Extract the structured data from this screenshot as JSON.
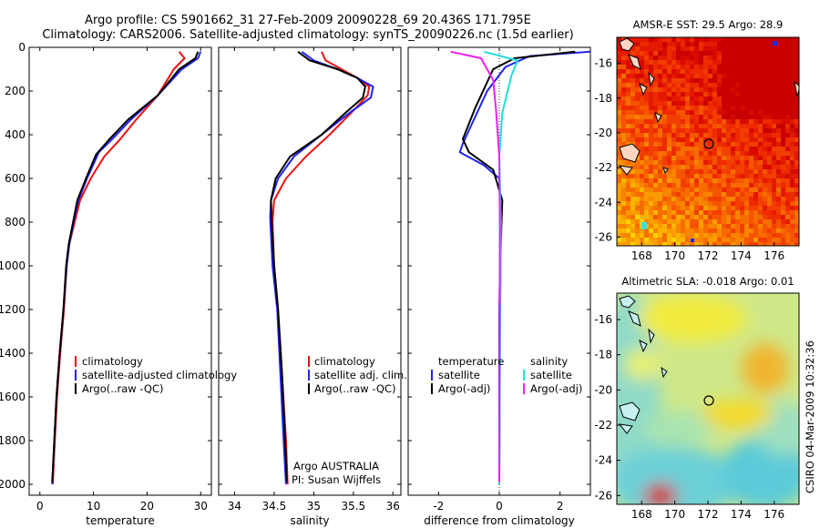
{
  "title": {
    "line1": "Argo profile: CS 5901662_31 27-Feb-2009 20090228_69 20.436S 171.795E",
    "line2": "Climatology: CARS2006. Satellite-adjusted climatology: synTS_20090226.nc (1.5d earlier)"
  },
  "credit": {
    "org": "Argo AUSTRALIA",
    "pi": "PI: Susan Wijffels",
    "stamp": "CSIRO 04-Mar-2009 10:32:36"
  },
  "colors": {
    "climatology": "#ee1111",
    "satellite": "#2222ee",
    "argo": "#000000",
    "sal_satellite": "#22dddd",
    "sal_argo": "#ee22ee"
  },
  "chart_data": [
    {
      "type": "line",
      "title": "",
      "xlabel": "temperature",
      "ylabel": "",
      "xlim": [
        -2,
        32
      ],
      "ylim": [
        2050,
        0
      ],
      "xticks": [
        0,
        10,
        20,
        30
      ],
      "yticks": [
        0,
        200,
        400,
        600,
        800,
        1000,
        1200,
        1400,
        1600,
        1800,
        2000
      ],
      "legend": [
        "climatology",
        "satellite-adjusted climatology",
        "Argo(..raw -QC)"
      ],
      "series": [
        {
          "name": "climatology",
          "color": "#ee1111",
          "points": [
            [
              26,
              20
            ],
            [
              27,
              50
            ],
            [
              25,
              100
            ],
            [
              22,
              220
            ],
            [
              18,
              330
            ],
            [
              15,
              420
            ],
            [
              12,
              500
            ],
            [
              9.5,
              600
            ],
            [
              7.5,
              700
            ],
            [
              6.5,
              800
            ],
            [
              5.5,
              900
            ],
            [
              5,
              1000
            ],
            [
              4.5,
              1200
            ],
            [
              3.8,
              1400
            ],
            [
              3.2,
              1600
            ],
            [
              2.8,
              1800
            ],
            [
              2.4,
              2000
            ]
          ]
        },
        {
          "name": "satellite",
          "color": "#2222ee",
          "points": [
            [
              30,
              20
            ],
            [
              29.5,
              50
            ],
            [
              26.5,
              100
            ],
            [
              22,
              220
            ],
            [
              17,
              330
            ],
            [
              13.5,
              420
            ],
            [
              11,
              480
            ],
            [
              8.8,
              600
            ],
            [
              7.2,
              700
            ],
            [
              6.3,
              800
            ],
            [
              5.5,
              900
            ],
            [
              5,
              1000
            ],
            [
              4.4,
              1200
            ],
            [
              3.7,
              1400
            ],
            [
              3.1,
              1600
            ],
            [
              2.7,
              1800
            ],
            [
              2.3,
              2000
            ]
          ]
        },
        {
          "name": "Argo",
          "color": "#000000",
          "points": [
            [
              29.5,
              20
            ],
            [
              29,
              50
            ],
            [
              26,
              100
            ],
            [
              22,
              220
            ],
            [
              16.5,
              330
            ],
            [
              13,
              420
            ],
            [
              10.5,
              490
            ],
            [
              8.6,
              600
            ],
            [
              7,
              700
            ],
            [
              6.2,
              800
            ],
            [
              5.4,
              900
            ],
            [
              4.9,
              1000
            ],
            [
              4.4,
              1200
            ],
            [
              3.7,
              1400
            ],
            [
              3.1,
              1600
            ],
            [
              2.7,
              1800
            ],
            [
              2.3,
              1990
            ]
          ]
        }
      ]
    },
    {
      "type": "line",
      "title": "",
      "xlabel": "salinity",
      "ylabel": "",
      "xlim": [
        33.8,
        36.1
      ],
      "ylim": [
        2050,
        0
      ],
      "xticks": [
        34,
        34.5,
        35,
        35.5,
        36
      ],
      "legend": [
        "climatology",
        "satellite adj. clim.",
        "Argo(..raw -QC)"
      ],
      "series": [
        {
          "name": "climatology",
          "color": "#ee1111",
          "points": [
            [
              35.1,
              20
            ],
            [
              35.15,
              60
            ],
            [
              35.35,
              100
            ],
            [
              35.55,
              140
            ],
            [
              35.7,
              180
            ],
            [
              35.68,
              220
            ],
            [
              35.5,
              290
            ],
            [
              35.2,
              400
            ],
            [
              34.9,
              500
            ],
            [
              34.65,
              600
            ],
            [
              34.5,
              700
            ],
            [
              34.48,
              800
            ],
            [
              34.5,
              1000
            ],
            [
              34.55,
              1200
            ],
            [
              34.6,
              1500
            ],
            [
              34.65,
              1800
            ],
            [
              34.67,
              2000
            ]
          ]
        },
        {
          "name": "satellite",
          "color": "#2222ee",
          "points": [
            [
              34.85,
              20
            ],
            [
              35.0,
              60
            ],
            [
              35.3,
              100
            ],
            [
              35.55,
              140
            ],
            [
              35.75,
              180
            ],
            [
              35.72,
              230
            ],
            [
              35.45,
              300
            ],
            [
              35.1,
              400
            ],
            [
              34.75,
              500
            ],
            [
              34.55,
              600
            ],
            [
              34.46,
              700
            ],
            [
              34.45,
              780
            ],
            [
              34.48,
              1000
            ],
            [
              34.54,
              1200
            ],
            [
              34.58,
              1500
            ],
            [
              34.62,
              1800
            ],
            [
              34.65,
              2000
            ]
          ]
        },
        {
          "name": "Argo",
          "color": "#000000",
          "points": [
            [
              34.8,
              20
            ],
            [
              34.95,
              60
            ],
            [
              35.3,
              100
            ],
            [
              35.55,
              140
            ],
            [
              35.65,
              180
            ],
            [
              35.62,
              230
            ],
            [
              35.4,
              300
            ],
            [
              35.1,
              400
            ],
            [
              34.7,
              500
            ],
            [
              34.52,
              600
            ],
            [
              34.46,
              700
            ],
            [
              34.47,
              800
            ],
            [
              34.5,
              1000
            ],
            [
              34.55,
              1200
            ],
            [
              34.6,
              1500
            ],
            [
              34.64,
              1800
            ],
            [
              34.66,
              1990
            ]
          ]
        }
      ]
    },
    {
      "type": "line",
      "title": "",
      "xlabel": "difference from climatology",
      "ylabel": "",
      "xlim": [
        -3,
        3
      ],
      "ylim": [
        2050,
        0
      ],
      "xticks": [
        -2,
        0,
        2
      ],
      "legend": [
        "temperature",
        "satellite",
        "Argo(-adj)",
        "salinity",
        "satellite",
        "Argo(-adj)"
      ],
      "series": [
        {
          "name": "temperature satellite",
          "color": "#2222ee",
          "points": [
            [
              3,
              20
            ],
            [
              1,
              40
            ],
            [
              0.2,
              90
            ],
            [
              -0.4,
              200
            ],
            [
              -0.9,
              350
            ],
            [
              -1.2,
              440
            ],
            [
              -1.3,
              480
            ],
            [
              -0.5,
              540
            ],
            [
              0,
              600
            ],
            [
              0.05,
              800
            ],
            [
              0,
              1200
            ],
            [
              0,
              2000
            ]
          ]
        },
        {
          "name": "temperature Argo(-adj)",
          "color": "#000000",
          "points": [
            [
              2.5,
              20
            ],
            [
              0.5,
              50
            ],
            [
              -0.2,
              100
            ],
            [
              -0.8,
              280
            ],
            [
              -1.2,
              420
            ],
            [
              -1,
              480
            ],
            [
              -0.2,
              560
            ],
            [
              0.1,
              700
            ],
            [
              0.05,
              900
            ],
            [
              0.02,
              1200
            ],
            [
              0,
              1990
            ]
          ]
        },
        {
          "name": "salinity satellite",
          "color": "#22dddd",
          "points": [
            [
              -0.5,
              20
            ],
            [
              0.6,
              60
            ],
            [
              0.4,
              130
            ],
            [
              0.1,
              300
            ],
            [
              0,
              500
            ],
            [
              0.05,
              800
            ],
            [
              0,
              2000
            ]
          ]
        },
        {
          "name": "salinity Argo(-adj)",
          "color": "#ee22ee",
          "points": [
            [
              -1.6,
              20
            ],
            [
              -0.6,
              50
            ],
            [
              -0.2,
              150
            ],
            [
              -0.1,
              300
            ],
            [
              0,
              500
            ],
            [
              0.02,
              800
            ],
            [
              0,
              1990
            ]
          ]
        }
      ]
    },
    {
      "type": "heatmap",
      "title": "AMSR-E SST: 29.5 Argo: 28.9",
      "xlim": [
        166.5,
        177.5
      ],
      "ylim": [
        -26.5,
        -14.5
      ],
      "xticks": [
        168,
        170,
        172,
        174,
        176
      ],
      "yticks": [
        -16,
        -18,
        -20,
        -22,
        -24,
        -26
      ]
    },
    {
      "type": "heatmap",
      "title": "Altimetric SLA: -0.018 Argo: 0.01",
      "xlim": [
        166.5,
        177.5
      ],
      "ylim": [
        -26.5,
        -14.5
      ],
      "xticks": [
        168,
        170,
        172,
        174,
        176
      ],
      "yticks": [
        -16,
        -18,
        -20,
        -22,
        -24,
        -26
      ]
    }
  ]
}
